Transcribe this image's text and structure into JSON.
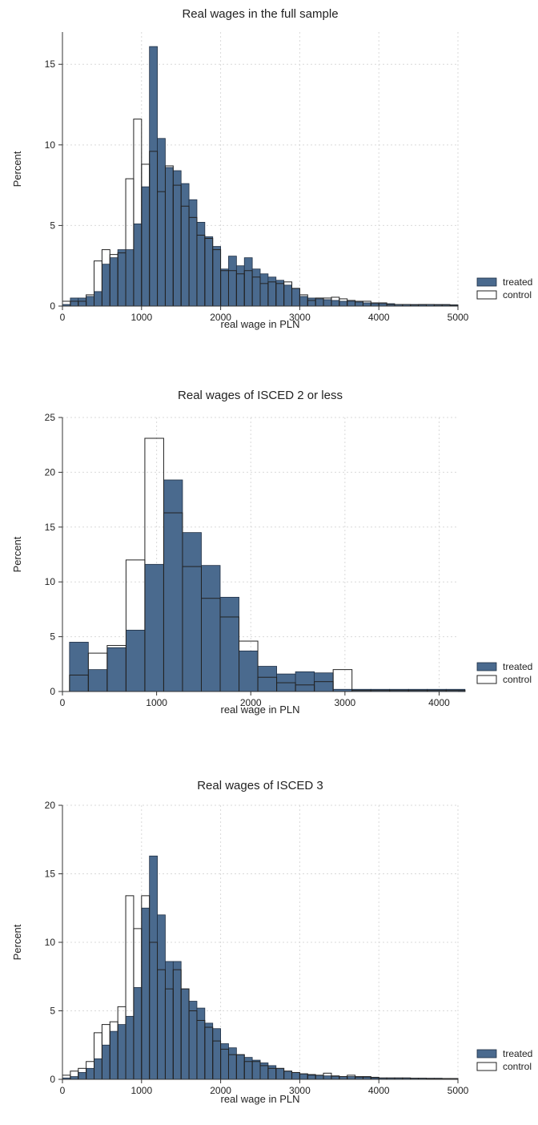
{
  "colors": {
    "treated": "#4a6a8e",
    "control_stroke": "#222222",
    "grid": "#d9d9d9"
  },
  "chart_data": [
    {
      "type": "bar",
      "title": "Real wages in the full sample",
      "xlabel": "real wage in PLN",
      "ylabel": "Percent",
      "xlim": [
        0,
        5000
      ],
      "ylim": [
        0,
        17
      ],
      "xticks": [
        0,
        1000,
        2000,
        3000,
        4000,
        5000
      ],
      "yticks": [
        0,
        5,
        10,
        15
      ],
      "grid": true,
      "legend_position": "right",
      "bin_width": 100,
      "series": [
        {
          "name": "treated",
          "x": [
            50,
            150,
            250,
            350,
            450,
            550,
            650,
            750,
            850,
            950,
            1050,
            1150,
            1250,
            1350,
            1450,
            1550,
            1650,
            1750,
            1850,
            1950,
            2050,
            2150,
            2250,
            2350,
            2450,
            2550,
            2650,
            2750,
            2850,
            2950,
            3050,
            3150,
            3250,
            3350,
            3450,
            3550,
            3650,
            3750,
            3850,
            3950,
            4050,
            4150,
            4250,
            4350,
            4450,
            4550,
            4650,
            4750,
            4850,
            4950
          ],
          "values": [
            0.1,
            0.5,
            0.5,
            0.6,
            0.9,
            2.6,
            3.0,
            3.5,
            3.5,
            5.1,
            7.4,
            16.1,
            10.4,
            8.6,
            8.4,
            7.6,
            6.6,
            5.2,
            4.3,
            3.7,
            2.3,
            3.1,
            2.5,
            3.0,
            2.3,
            2.0,
            1.8,
            1.6,
            1.3,
            1.1,
            0.6,
            0.5,
            0.45,
            0.4,
            0.35,
            0.3,
            0.3,
            0.25,
            0.2,
            0.15,
            0.15,
            0.15,
            0.1,
            0.1,
            0.1,
            0.08,
            0.1,
            0.1,
            0.1,
            0.08
          ]
        },
        {
          "name": "control",
          "x": [
            50,
            150,
            250,
            350,
            450,
            550,
            650,
            750,
            850,
            950,
            1050,
            1150,
            1250,
            1350,
            1450,
            1550,
            1650,
            1750,
            1850,
            1950,
            2050,
            2150,
            2250,
            2350,
            2450,
            2550,
            2650,
            2750,
            2850,
            2950,
            3050,
            3150,
            3250,
            3350,
            3450,
            3550,
            3650,
            3750,
            3850,
            3950,
            4050,
            4150,
            4250,
            4350,
            4450,
            4550,
            4650,
            4750,
            4850,
            4950
          ],
          "values": [
            0.3,
            0.3,
            0.3,
            0.7,
            2.8,
            3.5,
            3.2,
            3.3,
            7.9,
            11.6,
            8.8,
            9.6,
            7.1,
            8.7,
            7.5,
            6.2,
            5.5,
            4.4,
            4.2,
            3.5,
            2.2,
            2.2,
            2.0,
            2.2,
            1.8,
            1.4,
            1.5,
            1.4,
            1.5,
            1.1,
            0.7,
            0.35,
            0.5,
            0.5,
            0.55,
            0.45,
            0.35,
            0.3,
            0.3,
            0.2,
            0.2,
            0.1,
            0.1,
            0.1,
            0.08,
            0.1,
            0.1,
            0.08,
            0.08,
            0.06
          ]
        }
      ]
    },
    {
      "type": "bar",
      "title": "Real wages of ISCED 2 or less",
      "xlabel": "real wage in PLN",
      "ylabel": "Percent",
      "xlim": [
        0,
        4200
      ],
      "ylim": [
        0,
        25
      ],
      "xticks": [
        0,
        1000,
        2000,
        3000,
        4000
      ],
      "yticks": [
        0,
        5,
        10,
        15,
        20,
        25
      ],
      "grid": true,
      "legend_position": "right",
      "bin_width": 200,
      "series": [
        {
          "name": "treated",
          "x": [
            175,
            375,
            575,
            775,
            975,
            1175,
            1375,
            1575,
            1775,
            1975,
            2175,
            2375,
            2575,
            2775,
            2975,
            3175,
            3375,
            3575,
            3775,
            3975,
            4175
          ],
          "values": [
            4.5,
            2.0,
            4.0,
            5.6,
            11.6,
            19.3,
            14.5,
            11.5,
            8.6,
            3.7,
            2.3,
            1.6,
            1.8,
            1.7,
            0.2,
            0.2,
            0.2,
            0.2,
            0.2,
            0.2,
            0.2
          ]
        },
        {
          "name": "control",
          "x": [
            175,
            375,
            575,
            775,
            975,
            1175,
            1375,
            1575,
            1775,
            1975,
            2175,
            2375,
            2575,
            2775,
            2975,
            3175,
            3375,
            3575,
            3775,
            3975,
            4175
          ],
          "values": [
            1.5,
            3.5,
            4.2,
            12.0,
            23.1,
            16.3,
            11.4,
            8.5,
            6.8,
            4.6,
            1.3,
            0.8,
            0.6,
            0.9,
            2.0,
            0.1,
            0.1,
            0.1,
            0.1,
            0.1,
            0.1
          ]
        }
      ]
    },
    {
      "type": "bar",
      "title": "Real wages of ISCED 3",
      "xlabel": "real wage in PLN",
      "ylabel": "Percent",
      "xlim": [
        0,
        5000
      ],
      "ylim": [
        0,
        20
      ],
      "xticks": [
        0,
        1000,
        2000,
        3000,
        4000,
        5000
      ],
      "yticks": [
        0,
        5,
        10,
        15,
        20
      ],
      "grid": true,
      "legend_position": "right",
      "bin_width": 100,
      "series": [
        {
          "name": "treated",
          "x": [
            50,
            150,
            250,
            350,
            450,
            550,
            650,
            750,
            850,
            950,
            1050,
            1150,
            1250,
            1350,
            1450,
            1550,
            1650,
            1750,
            1850,
            1950,
            2050,
            2150,
            2250,
            2350,
            2450,
            2550,
            2650,
            2750,
            2850,
            2950,
            3050,
            3150,
            3250,
            3350,
            3450,
            3550,
            3650,
            3750,
            3850,
            3950,
            4050,
            4150,
            4250,
            4350,
            4450,
            4550,
            4650,
            4750,
            4850,
            4950
          ],
          "values": [
            0.1,
            0.2,
            0.5,
            0.8,
            1.5,
            2.5,
            3.5,
            4.0,
            4.6,
            6.7,
            12.5,
            16.3,
            12.0,
            8.6,
            8.6,
            6.6,
            5.7,
            5.2,
            4.1,
            3.7,
            2.6,
            2.3,
            1.8,
            1.6,
            1.4,
            1.2,
            1.0,
            0.8,
            0.6,
            0.5,
            0.4,
            0.3,
            0.3,
            0.25,
            0.2,
            0.2,
            0.2,
            0.15,
            0.15,
            0.1,
            0.1,
            0.1,
            0.1,
            0.1,
            0.08,
            0.08,
            0.08,
            0.08,
            0.06,
            0.06
          ]
        },
        {
          "name": "control",
          "x": [
            50,
            150,
            250,
            350,
            450,
            550,
            650,
            750,
            850,
            950,
            1050,
            1150,
            1250,
            1350,
            1450,
            1550,
            1650,
            1750,
            1850,
            1950,
            2050,
            2150,
            2250,
            2350,
            2450,
            2550,
            2650,
            2750,
            2850,
            2950,
            3050,
            3150,
            3250,
            3350,
            3450,
            3550,
            3650,
            3750,
            3850,
            3950,
            4050,
            4150,
            4250,
            4350,
            4450,
            4550,
            4650,
            4750,
            4850,
            4950
          ],
          "values": [
            0.3,
            0.6,
            0.8,
            1.3,
            3.4,
            4.0,
            4.2,
            5.3,
            13.4,
            11.0,
            13.4,
            10.0,
            8.0,
            6.6,
            8.0,
            6.6,
            5.0,
            4.3,
            3.8,
            2.8,
            2.2,
            1.8,
            1.8,
            1.3,
            1.3,
            1.0,
            0.8,
            0.8,
            0.6,
            0.5,
            0.4,
            0.35,
            0.3,
            0.45,
            0.25,
            0.2,
            0.3,
            0.2,
            0.2,
            0.15,
            0.1,
            0.1,
            0.1,
            0.1,
            0.08,
            0.08,
            0.06,
            0.06,
            0.06,
            0.06
          ]
        }
      ]
    }
  ]
}
